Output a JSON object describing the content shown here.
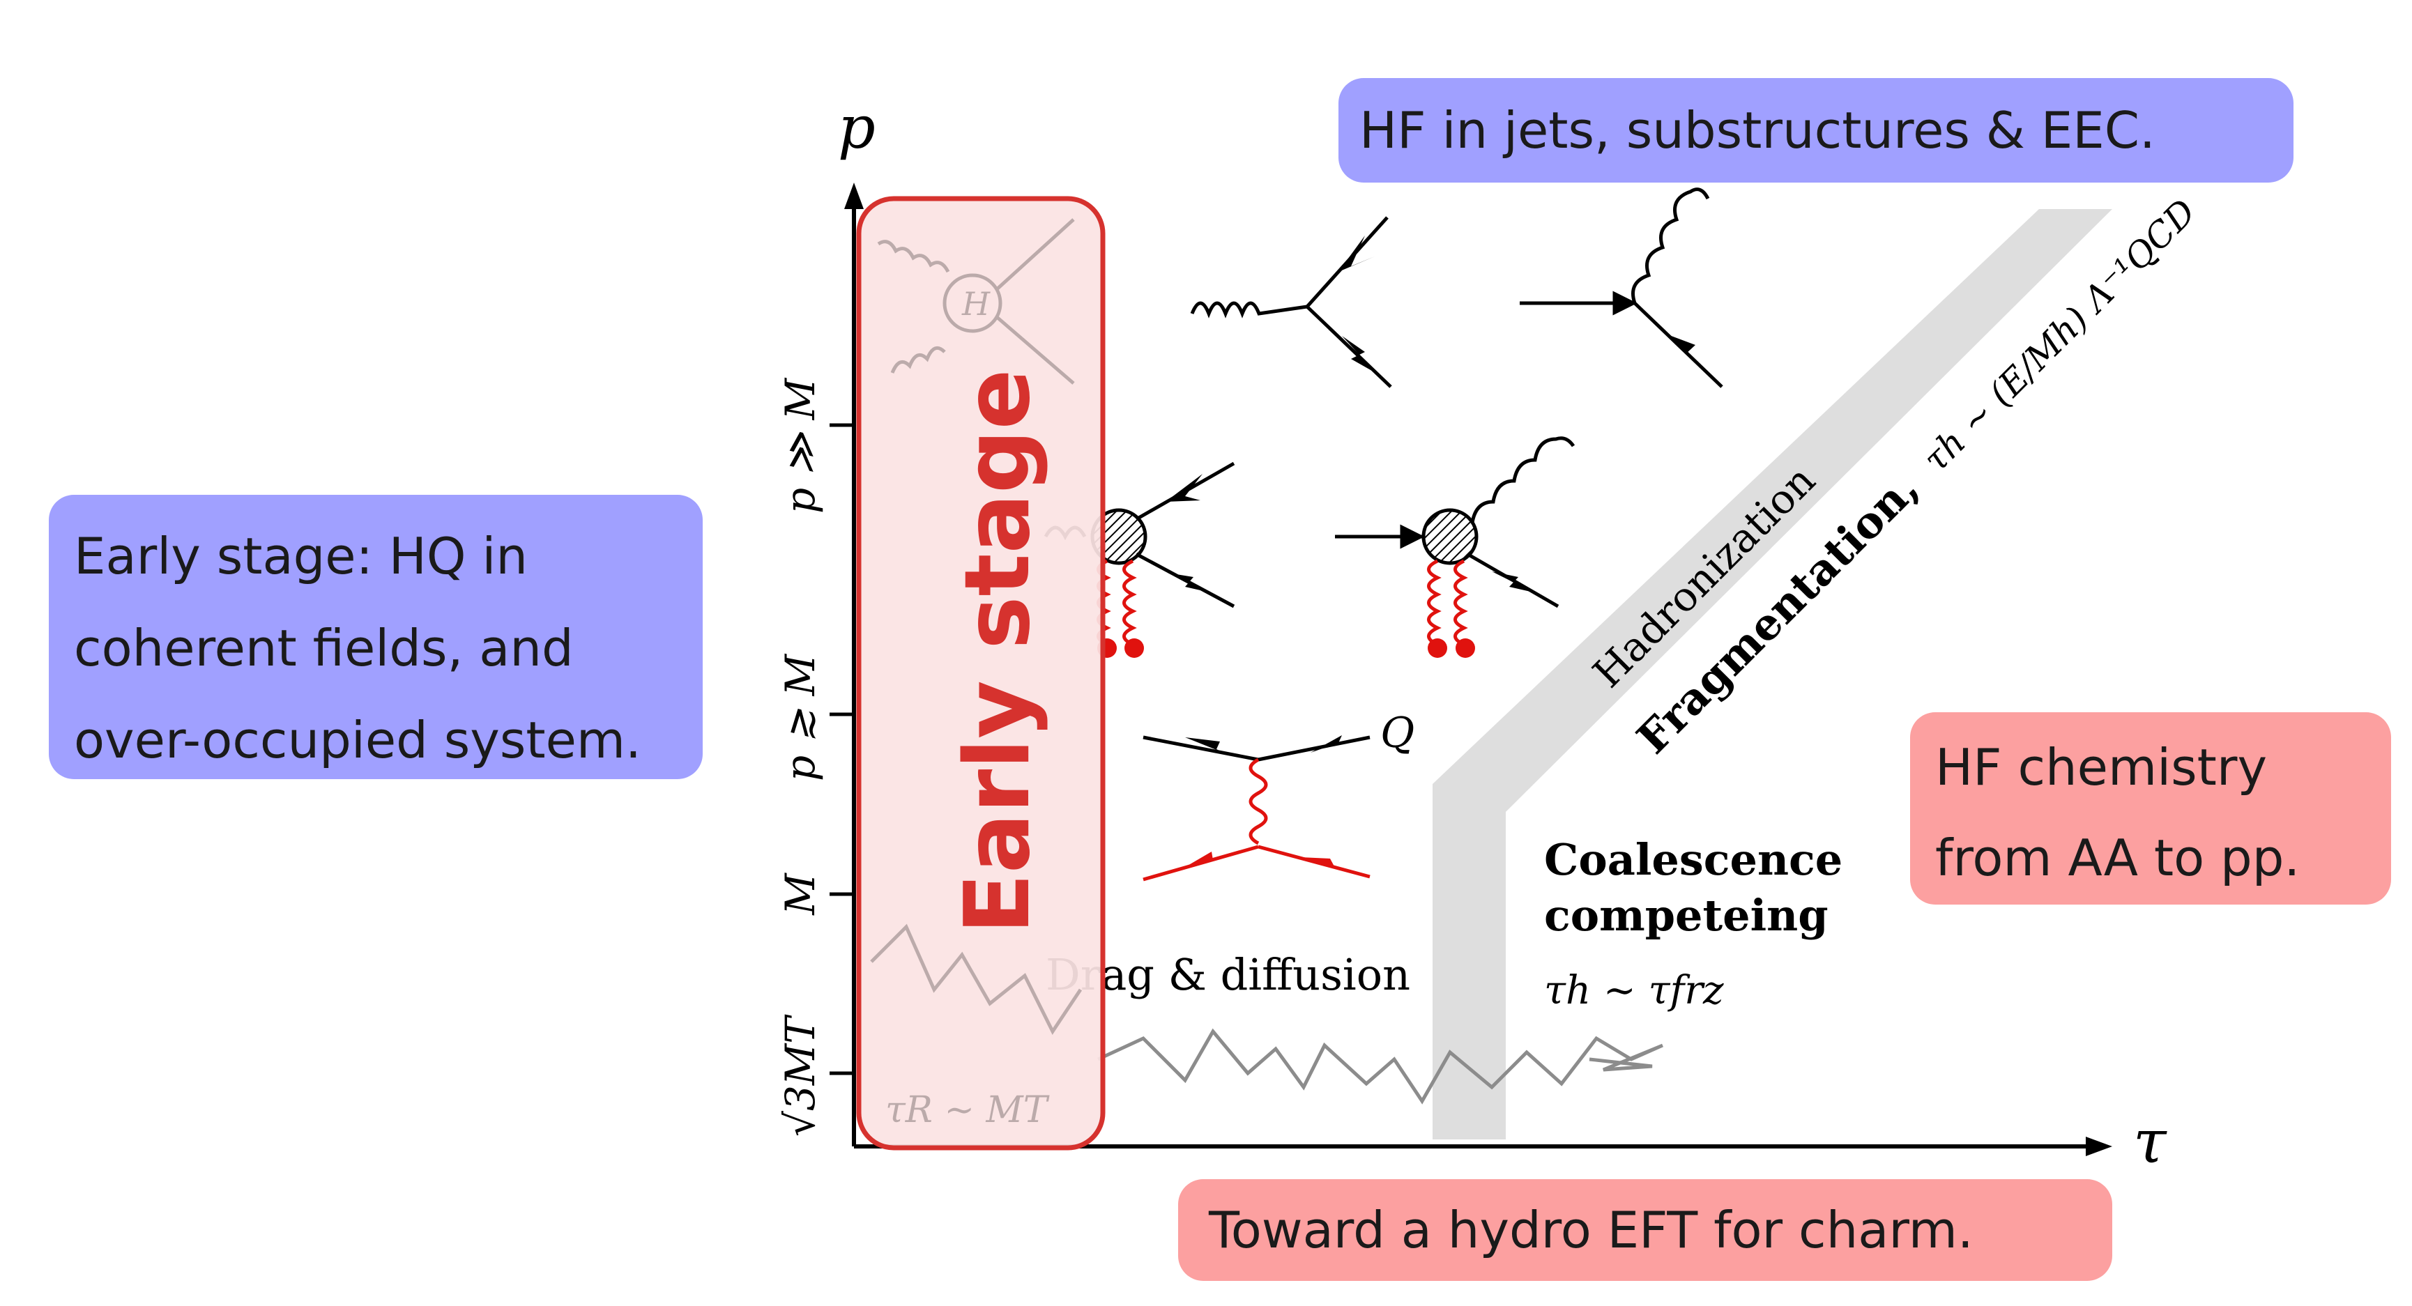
{
  "colors": {
    "callout_blue": "#a0a0ff",
    "callout_red": "#fca0a0",
    "early_stage_border": "#d6322e",
    "early_stage_fill": "#fbe3e3",
    "band_gray": "#dedede",
    "feynman_red": "#e0120e",
    "random_walk_gray": "#8c8c8c"
  },
  "callouts": {
    "top_jets": "HF in jets, substructures & EEC.",
    "early_stage_lines": [
      "Early stage:  HQ in",
      "coherent fields, and",
      "over-occupied system."
    ],
    "chemistry_lines": [
      "HF chemistry",
      "from AA to pp."
    ],
    "hydro": "Toward a hydro EFT for charm."
  },
  "early_stage_label": "Early stage",
  "axes": {
    "p_label": "p",
    "tau_label": "τ",
    "ticks": [
      "p ≫ M",
      "p ≳ M",
      "M",
      "√3MT"
    ]
  },
  "regions": {
    "hadronization": "Hadronization",
    "fragmentation": "Fragmentation,",
    "fragmentation_formula": "τh ∼ (E/Mh) Λ⁻¹QCD",
    "coalescence_lines": [
      "Coalescence",
      "competeing"
    ],
    "coalescence_formula": "τh ∼ τfrz",
    "drag": "Drag & diffusion",
    "tau_r": "τR ∼ MT",
    "Q_label": "Q",
    "H_label": "H"
  }
}
